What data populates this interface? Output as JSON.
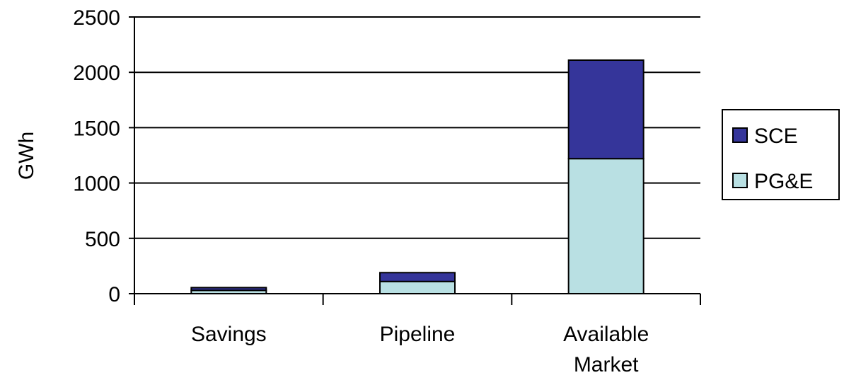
{
  "chart_data": {
    "type": "bar",
    "stacked": true,
    "categories": [
      [
        "Savings"
      ],
      [
        "Pipeline"
      ],
      [
        "Available",
        "Market"
      ]
    ],
    "series": [
      {
        "name": "PG&E",
        "color": "#b9e0e3",
        "values": [
          30,
          110,
          1220
        ]
      },
      {
        "name": "SCE",
        "color": "#35359a",
        "values": [
          25,
          80,
          890
        ]
      }
    ],
    "title": "",
    "xlabel": "",
    "ylabel": "GWh",
    "ylim": [
      0,
      2500
    ],
    "yticks": [
      "0",
      "500",
      "1000",
      "1500",
      "2000",
      "2500"
    ],
    "grid": true,
    "legend": {
      "position": "right",
      "order": [
        "SCE",
        "PG&E"
      ]
    }
  }
}
